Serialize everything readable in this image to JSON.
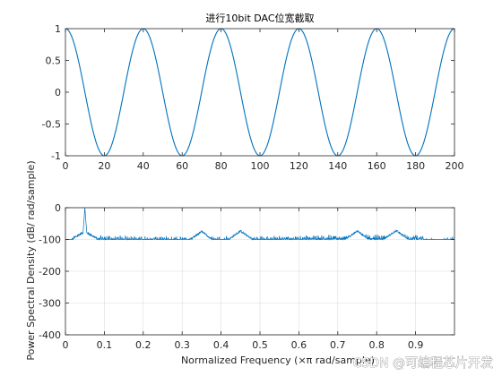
{
  "colors": {
    "line": "#0072bd",
    "axis": "#262626",
    "grid": "#dcdcdc"
  },
  "chart_data": [
    {
      "type": "line",
      "title": "进行10bit DAC位宽截取",
      "xlim": [
        0,
        200
      ],
      "ylim": [
        -1,
        1
      ],
      "xticks": [
        0,
        20,
        40,
        60,
        80,
        100,
        120,
        140,
        160,
        180,
        200
      ],
      "yticks": [
        1,
        0.5,
        0,
        -0.5,
        -1
      ],
      "xtick_labels": [
        "0",
        "20",
        "40",
        "60",
        "80",
        "100",
        "120",
        "140",
        "160",
        "180",
        "200"
      ],
      "ytick_labels": [
        "1",
        "0.5",
        "0",
        "-0.5",
        "-1"
      ],
      "grid": false,
      "series": [
        {
          "period": 40,
          "amplitude": 1,
          "phase": "cos",
          "x_start": 0,
          "x_end": 200
        }
      ]
    },
    {
      "type": "line",
      "xlabel": "Normalized Frequency  (×π rad/sample)",
      "ylabel": "Power Spectral Density (dB/ rad/sample)",
      "xlim": [
        0,
        1
      ],
      "ylim": [
        -400,
        0
      ],
      "xticks": [
        0,
        0.1,
        0.2,
        0.3,
        0.4,
        0.5,
        0.6,
        0.7,
        0.8,
        0.9
      ],
      "yticks": [
        0,
        -100,
        -200,
        -300,
        -400
      ],
      "xtick_labels": [
        "0",
        "0.1",
        "0.2",
        "0.3",
        "0.4",
        "0.5",
        "0.6",
        "0.7",
        "0.8",
        "0.9"
      ],
      "ytick_labels": [
        "0",
        "-100",
        "-200",
        "-300",
        "-400"
      ],
      "grid": true,
      "series": [
        {
          "noise_floor_db": -100,
          "peak": {
            "x": 0.05,
            "y": 0
          },
          "spurs": [
            {
              "x": 0.35,
              "y": -75
            },
            {
              "x": 0.45,
              "y": -73
            },
            {
              "x": 0.75,
              "y": -73
            },
            {
              "x": 0.85,
              "y": -72
            }
          ]
        }
      ]
    }
  ],
  "watermark": "CSDN @可编程芯片开发"
}
